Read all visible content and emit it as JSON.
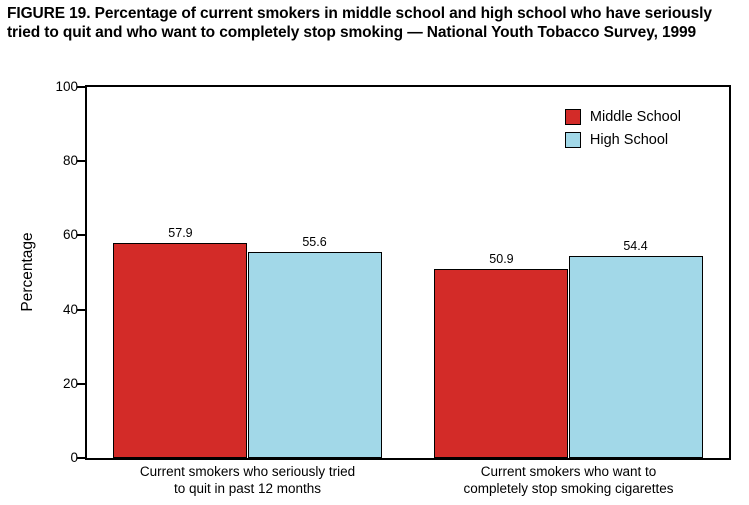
{
  "title": "FIGURE 19. Percentage of current smokers in middle school and high school who have seriously tried to quit and who want to completely stop smoking — National Youth Tobacco Survey, 1999",
  "chart_data": {
    "type": "bar",
    "categories": [
      "Current smokers who seriously tried\nto quit in past 12 months",
      "Current smokers who want to\ncompletely stop smoking cigarettes"
    ],
    "series": [
      {
        "name": "Middle School",
        "color": "#d32b28",
        "values": [
          57.9,
          50.9
        ]
      },
      {
        "name": "High School",
        "color": "#a2d8e8",
        "values": [
          55.6,
          54.4
        ]
      }
    ],
    "title": "",
    "xlabel": "",
    "ylabel": "Percentage",
    "ylim": [
      0,
      100
    ],
    "yticks": [
      0,
      20,
      40,
      60,
      80,
      100
    ],
    "grid": false,
    "legend_position": "top-right",
    "bar_edge_color": "#000000",
    "background": "#ffffff"
  }
}
